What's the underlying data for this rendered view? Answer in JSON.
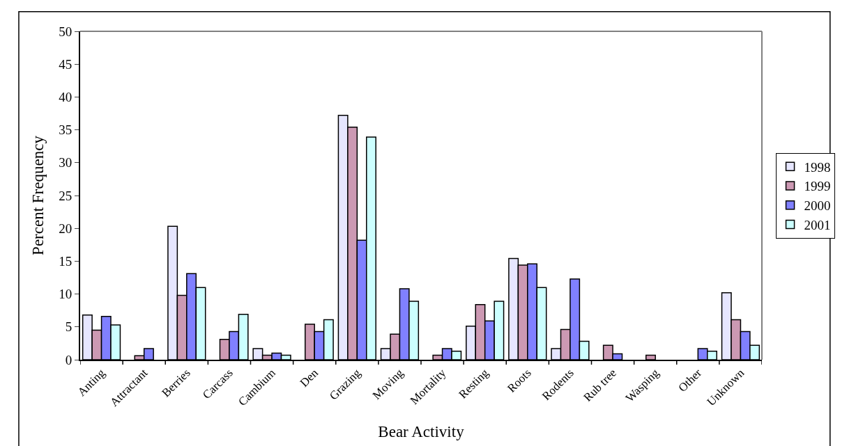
{
  "chart_data": {
    "type": "bar",
    "xlabel": "Bear Activity",
    "ylabel": "Percent Frequency",
    "categories": [
      "Anting",
      "Attractant",
      "Berries",
      "Carcass",
      "Cambium",
      "Den",
      "Grazing",
      "Moving",
      "Mortality",
      "Resting",
      "Roots",
      "Rodents",
      "Rub tree",
      "Wasping",
      "Other",
      "Unknown"
    ],
    "series": [
      {
        "name": "1998",
        "color": "#e6e6ff",
        "values": [
          6.8,
          null,
          20.3,
          null,
          1.7,
          null,
          37.2,
          1.7,
          null,
          5.1,
          15.4,
          1.7,
          null,
          null,
          null,
          10.2
        ]
      },
      {
        "name": "1999",
        "color": "#cc99b3",
        "values": [
          4.5,
          0.6,
          9.8,
          3.1,
          0.7,
          5.4,
          35.4,
          3.9,
          0.7,
          8.4,
          14.4,
          4.6,
          2.2,
          0.7,
          null,
          6.1
        ]
      },
      {
        "name": "2000",
        "color": "#8080ff",
        "values": [
          6.6,
          1.7,
          13.1,
          4.3,
          1.0,
          4.3,
          18.2,
          10.8,
          1.7,
          5.9,
          14.6,
          12.3,
          0.9,
          null,
          1.7,
          4.3
        ]
      },
      {
        "name": "2001",
        "color": "#ccffff",
        "values": [
          5.3,
          null,
          11.0,
          6.9,
          0.7,
          6.1,
          33.9,
          8.9,
          1.3,
          8.9,
          11.0,
          2.8,
          null,
          null,
          1.3,
          2.2
        ]
      }
    ],
    "ylim": [
      0,
      50
    ],
    "yticks": [
      0,
      5,
      10,
      15,
      20,
      25,
      30,
      35,
      40,
      45,
      50
    ],
    "legend": "right"
  }
}
